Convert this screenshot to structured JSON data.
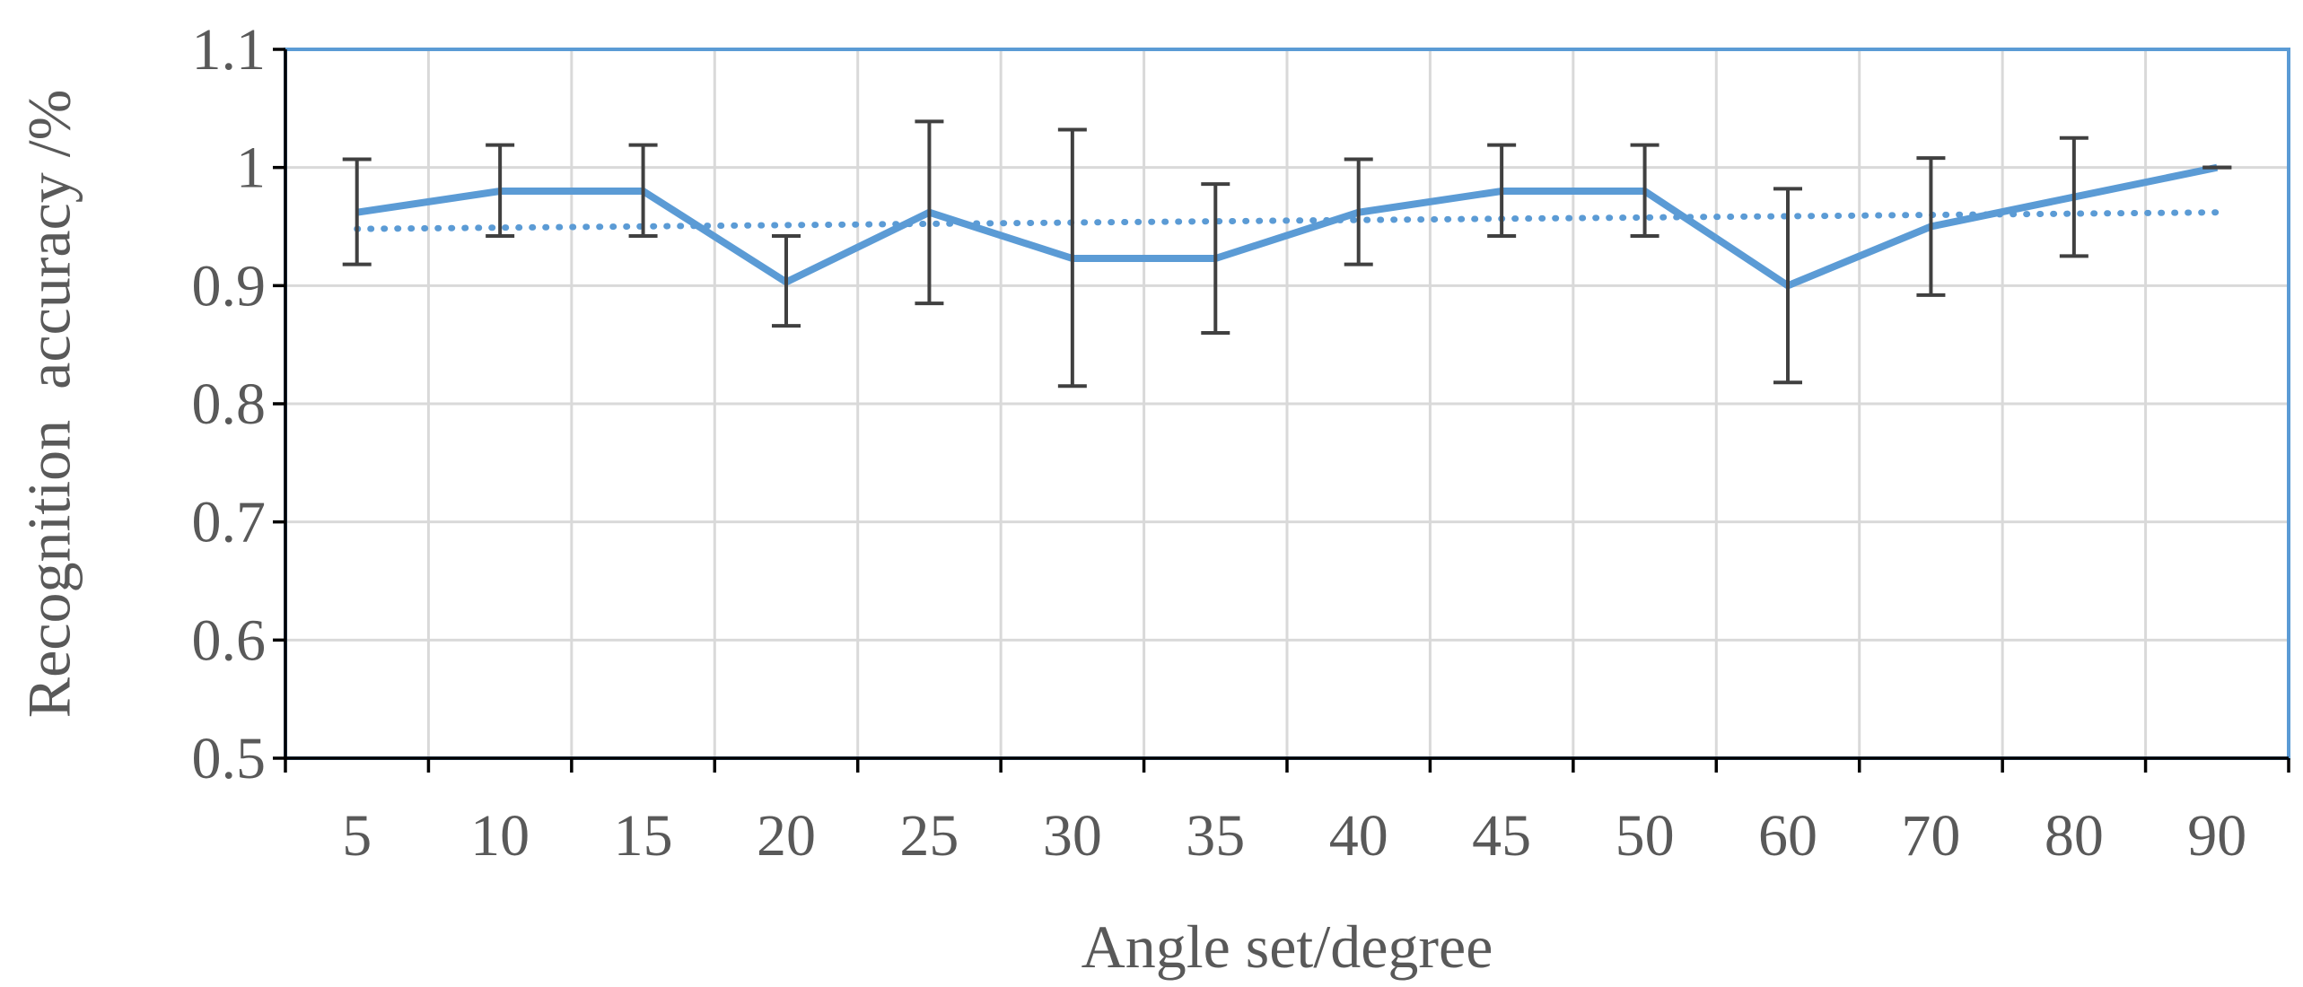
{
  "chart_data": {
    "type": "line",
    "title": "",
    "xlabel": "Angle set/degree",
    "ylabel": "Recognition  accuracy /%",
    "categories": [
      "5",
      "10",
      "15",
      "20",
      "25",
      "30",
      "35",
      "40",
      "45",
      "50",
      "60",
      "70",
      "80",
      "90"
    ],
    "ylim": [
      0.5,
      1.1
    ],
    "yticks": [
      "0.5",
      "0.6",
      "0.7",
      "0.8",
      "0.9",
      "1",
      "1.1"
    ],
    "grid": true,
    "legend": "none",
    "series": [
      {
        "values": [
          0.962,
          0.98,
          0.98,
          0.903,
          0.962,
          0.923,
          0.923,
          0.962,
          0.98,
          0.98,
          0.9,
          0.95,
          0.975,
          1.0
        ],
        "error_upper": [
          1.007,
          1.019,
          1.019,
          0.942,
          1.039,
          1.032,
          0.986,
          1.007,
          1.019,
          1.019,
          0.982,
          1.008,
          1.025,
          1.0
        ],
        "error_lower": [
          0.918,
          0.942,
          0.942,
          0.866,
          0.885,
          0.815,
          0.86,
          0.918,
          0.942,
          0.942,
          0.818,
          0.892,
          0.925,
          1.0
        ],
        "color": "#5b9bd5",
        "style": "solid"
      }
    ],
    "trendline": {
      "type": "linear",
      "start": 0.948,
      "end": 0.962,
      "color": "#5b9bd5",
      "style": "dotted"
    },
    "colors": {
      "grid": "#d9d9d9",
      "axis": "#000000",
      "plot_border": "#5b9bd5",
      "error_bar": "#404040",
      "text": "#595959"
    }
  }
}
